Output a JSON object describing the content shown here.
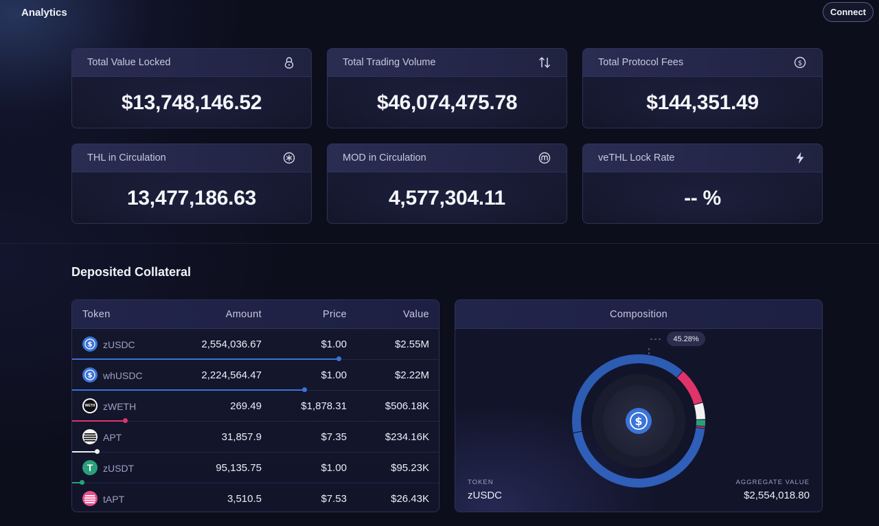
{
  "app": {
    "title": "Analytics",
    "connect_label": "Connect"
  },
  "stats": [
    {
      "label": "Total Value Locked",
      "value": "$13,748,146.52",
      "icon": "lock-icon"
    },
    {
      "label": "Total Trading Volume",
      "value": "$46,074,475.78",
      "icon": "swap-arrows-icon"
    },
    {
      "label": "Total Protocol Fees",
      "value": "$144,351.49",
      "icon": "dollar-circle-icon"
    },
    {
      "label": "THL in Circulation",
      "value": "13,477,186.63",
      "icon": "thl-token-icon"
    },
    {
      "label": "MOD in Circulation",
      "value": "4,577,304.11",
      "icon": "mod-token-icon"
    },
    {
      "label": "veTHL Lock Rate",
      "value": "-- %",
      "icon": "lightning-icon"
    }
  ],
  "collateral": {
    "title": "Deposited Collateral",
    "headers": {
      "token": "Token",
      "amount": "Amount",
      "price": "Price",
      "value": "Value"
    },
    "rows": [
      {
        "token": "zUSDC",
        "amount": "2,554,036.67",
        "price": "$1.00",
        "value": "$2.55M",
        "share": 0.4528,
        "color": "#3b74d8",
        "icon": "usdc-icon"
      },
      {
        "token": "whUSDC",
        "amount": "2,224,564.47",
        "price": "$1.00",
        "value": "$2.22M",
        "share": 0.394,
        "color": "#3b74d8",
        "icon": "usdc-icon"
      },
      {
        "token": "zWETH",
        "amount": "269.49",
        "price": "$1,878.31",
        "value": "$506.18K",
        "share": 0.0897,
        "color": "#e0336a",
        "icon": "weth-icon",
        "icon_text": "WETH"
      },
      {
        "token": "APT",
        "amount": "31,857.9",
        "price": "$7.35",
        "value": "$234.16K",
        "share": 0.0415,
        "color": "#f1f1f1",
        "icon": "aptos-icon"
      },
      {
        "token": "zUSDT",
        "amount": "95,135.75",
        "price": "$1.00",
        "value": "$95.23K",
        "share": 0.0169,
        "color": "#2aa07a",
        "icon": "tether-icon",
        "icon_text": "T"
      },
      {
        "token": "tAPT",
        "amount": "3,510.5",
        "price": "$7.53",
        "value": "$26.43K",
        "share": 0.0047,
        "color": "#e0336a",
        "icon": "tapt-icon"
      }
    ]
  },
  "composition": {
    "title": "Composition",
    "highlight_percent": "45.28%",
    "token_caption": "TOKEN",
    "token_value": "zUSDC",
    "aggregate_caption": "AGGREGATE VALUE",
    "aggregate_value": "$2,554,018.80",
    "center_icon": "usdc-icon"
  }
}
